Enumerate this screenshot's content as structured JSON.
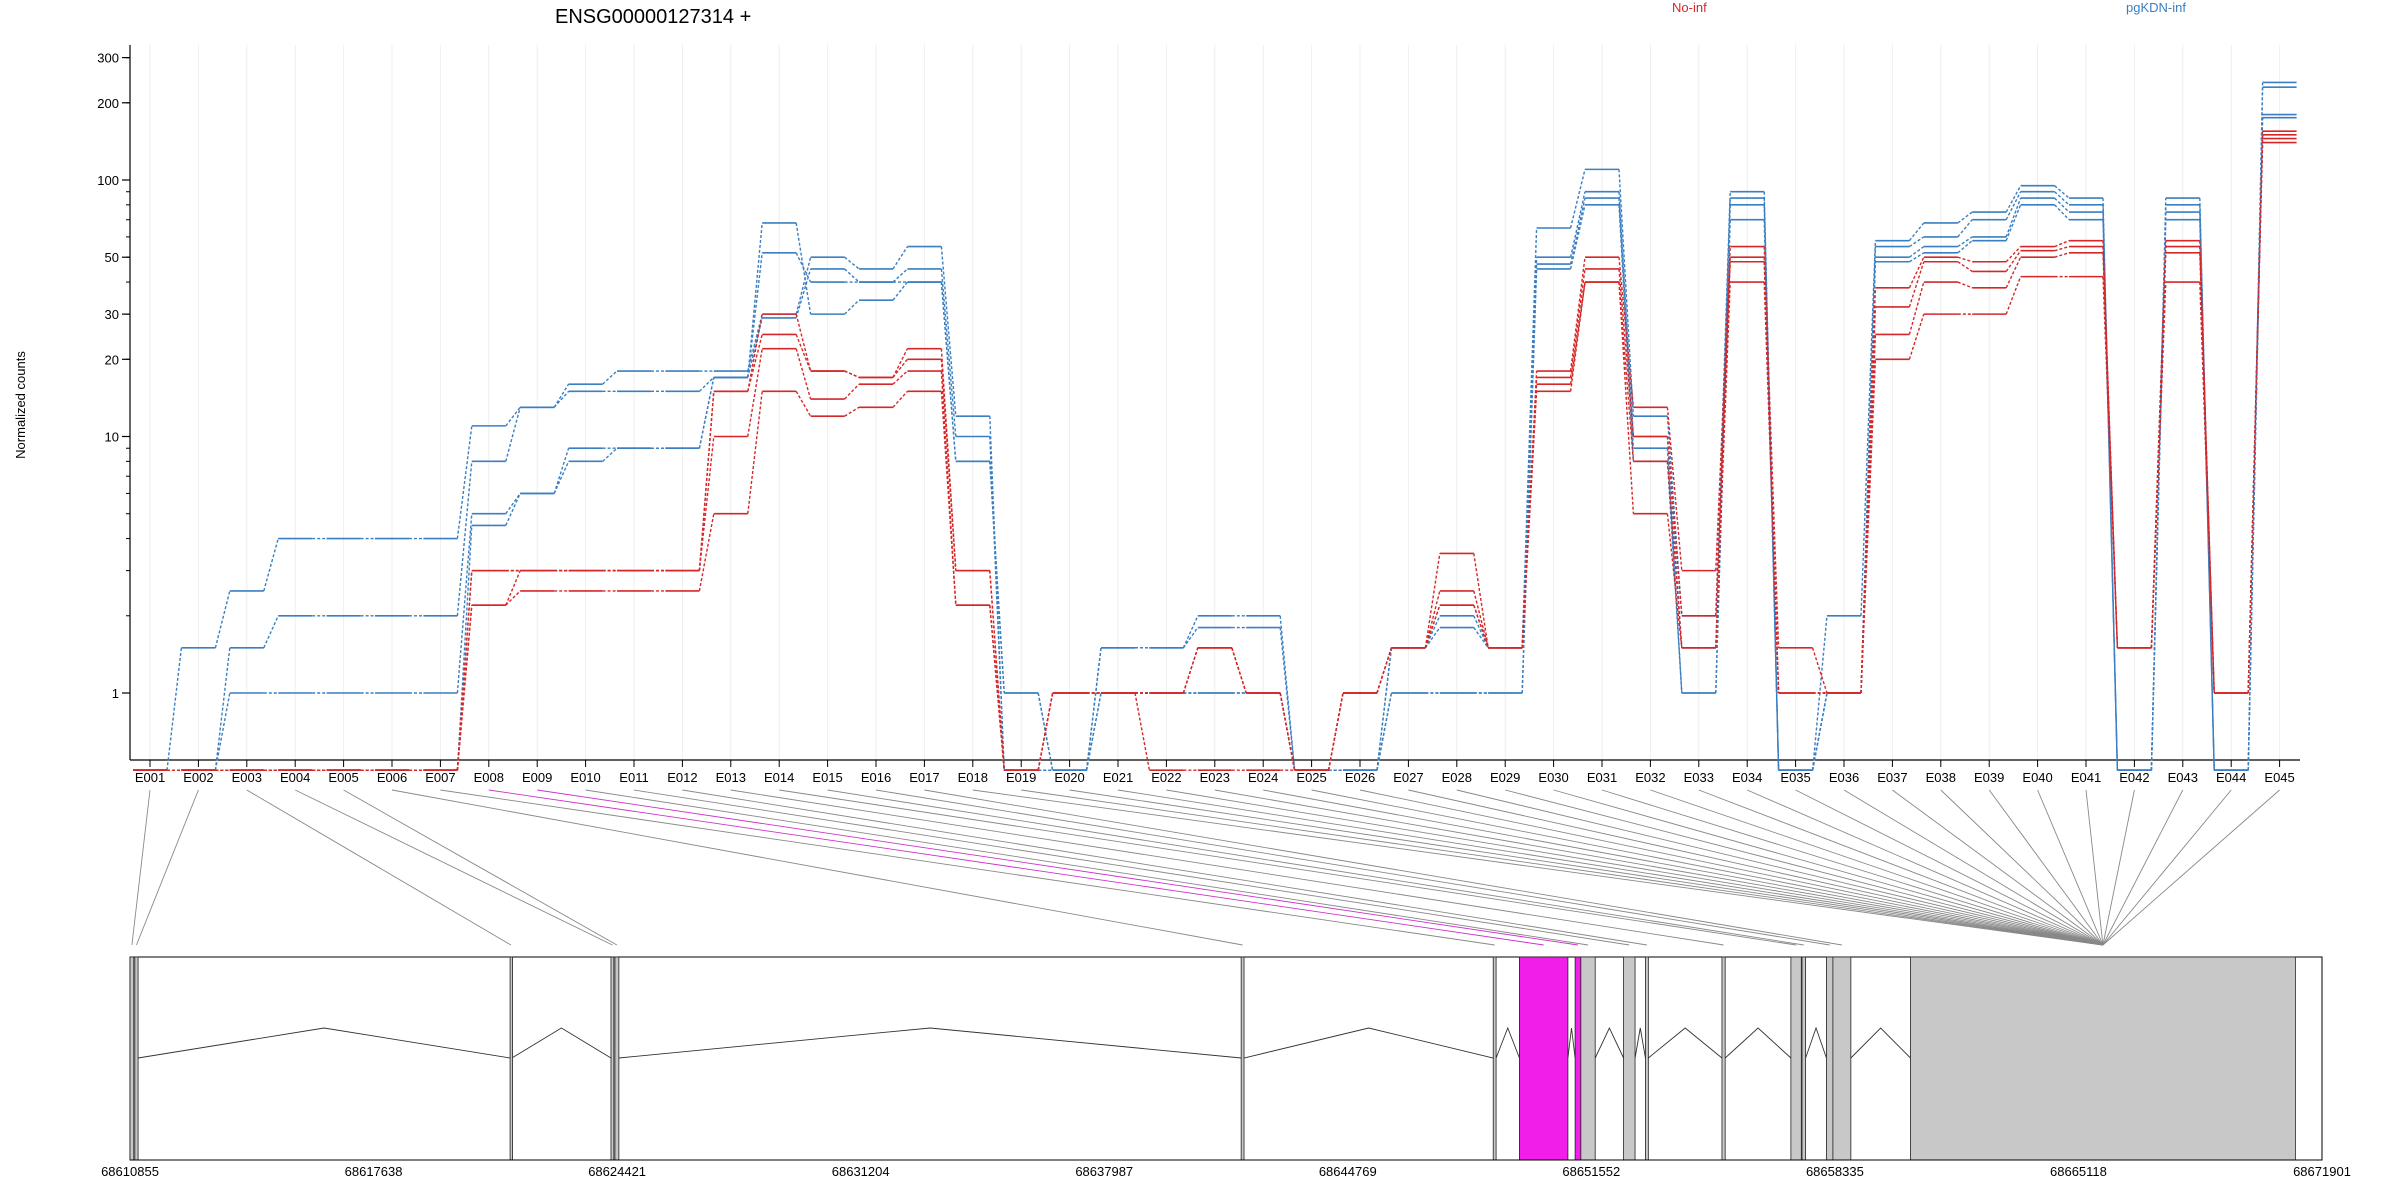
{
  "figure": {
    "title": "ENSG00000127314 +",
    "ylabel": "Normalized counts"
  },
  "chart_data": {
    "type": "line",
    "title": "ENSG00000127314 +",
    "ylabel": "Normalized counts",
    "yscale": "log",
    "yticks": [
      1,
      10,
      20,
      30,
      50,
      100,
      200,
      300
    ],
    "categories": [
      "E001",
      "E002",
      "E003",
      "E004",
      "E005",
      "E006",
      "E007",
      "E008",
      "E009",
      "E010",
      "E011",
      "E012",
      "E013",
      "E014",
      "E015",
      "E016",
      "E017",
      "E018",
      "E019",
      "E020",
      "E021",
      "E022",
      "E023",
      "E024",
      "E025",
      "E026",
      "E027",
      "E028",
      "E029",
      "E030",
      "E031",
      "E032",
      "E033",
      "E034",
      "E035",
      "E036",
      "E037",
      "E038",
      "E039",
      "E040",
      "E041",
      "E042",
      "E043",
      "E044",
      "E045"
    ],
    "legend": [
      {
        "name": "No-inf",
        "color": "#d62728"
      },
      {
        "name": "pgKDN-inf",
        "color": "#3a7fc1"
      }
    ],
    "series": [
      {
        "group": "pgKDN-inf",
        "values": [
          0.5,
          1.5,
          2.5,
          4,
          4,
          4,
          4,
          11,
          13,
          16,
          18,
          18,
          18,
          30,
          50,
          45,
          55,
          12,
          0.5,
          0.5,
          1.5,
          1.5,
          2,
          2,
          0.5,
          0.5,
          1.5,
          2,
          1.5,
          65,
          110,
          12,
          2,
          90,
          0.5,
          2,
          58,
          68,
          75,
          95,
          85,
          0.5,
          85,
          0.5,
          240
        ]
      },
      {
        "group": "pgKDN-inf",
        "values": [
          0.5,
          0.5,
          1.5,
          2,
          2,
          2,
          2,
          8,
          13,
          15,
          15,
          15,
          17,
          29,
          45,
          40,
          45,
          10,
          0.5,
          0.5,
          1.5,
          1.5,
          1.8,
          1.8,
          0.5,
          0.5,
          1.5,
          1.8,
          1.5,
          50,
          90,
          10,
          1.5,
          85,
          0.5,
          1,
          55,
          60,
          70,
          90,
          80,
          0.5,
          80,
          0.5,
          230
        ]
      },
      {
        "group": "pgKDN-inf",
        "values": [
          0.5,
          0.5,
          1,
          1,
          1,
          1,
          1,
          5,
          6,
          9,
          9,
          9,
          17,
          68,
          30,
          34,
          40,
          8,
          1,
          0.5,
          1,
          1,
          1,
          1,
          0.5,
          0.5,
          1,
          1,
          1,
          47,
          85,
          9,
          1,
          80,
          0.5,
          1,
          50,
          55,
          60,
          85,
          75,
          0.5,
          75,
          0.5,
          180
        ]
      },
      {
        "group": "pgKDN-inf",
        "values": [
          0.5,
          0.5,
          0.5,
          0.5,
          0.5,
          0.5,
          0.5,
          4.5,
          6,
          8,
          9,
          9,
          17,
          52,
          40,
          40,
          40,
          8,
          1,
          0.5,
          1,
          1,
          1,
          1,
          0.5,
          0.5,
          1,
          1,
          1,
          45,
          80,
          8,
          1,
          70,
          0.5,
          1,
          48,
          52,
          58,
          80,
          70,
          0.5,
          70,
          0.5,
          175
        ]
      },
      {
        "group": "No-inf",
        "values": [
          0.5,
          0.5,
          0.5,
          0.5,
          0.5,
          0.5,
          0.5,
          3,
          3,
          3,
          3,
          3,
          15,
          30,
          18,
          17,
          22,
          3,
          0.5,
          1,
          1,
          1,
          1.5,
          1,
          0.5,
          1,
          1.5,
          3.5,
          1.5,
          18,
          50,
          13,
          3,
          55,
          1.5,
          1,
          38,
          50,
          48,
          55,
          58,
          1.5,
          58,
          1,
          155
        ]
      },
      {
        "group": "No-inf",
        "values": [
          0.5,
          0.5,
          0.5,
          0.5,
          0.5,
          0.5,
          0.5,
          3,
          3,
          3,
          3,
          3,
          15,
          25,
          18,
          17,
          20,
          3,
          0.5,
          1,
          1,
          1,
          1.5,
          1,
          0.5,
          1,
          1.5,
          2.5,
          1.5,
          17,
          45,
          10,
          2,
          50,
          1,
          1,
          32,
          48,
          44,
          53,
          55,
          1.5,
          55,
          1,
          150
        ]
      },
      {
        "group": "No-inf",
        "values": [
          0.5,
          0.5,
          0.5,
          0.5,
          0.5,
          0.5,
          0.5,
          2.2,
          3,
          3,
          3,
          3,
          10,
          22,
          14,
          16,
          18,
          2.2,
          0.5,
          1,
          1,
          1,
          1.5,
          1,
          0.5,
          1,
          1.5,
          2.2,
          1.5,
          16,
          40,
          8,
          1.5,
          48,
          1,
          1,
          25,
          40,
          38,
          50,
          52,
          1.5,
          52,
          1,
          145
        ]
      },
      {
        "group": "No-inf",
        "values": [
          0.5,
          0.5,
          0.5,
          0.5,
          0.5,
          0.5,
          0.5,
          2.2,
          2.5,
          2.5,
          2.5,
          2.5,
          5,
          15,
          12,
          13,
          15,
          2.2,
          0.5,
          1,
          1,
          0.5,
          0.5,
          0.5,
          0.5,
          1,
          1.5,
          2.2,
          1.5,
          15,
          40,
          5,
          1.5,
          40,
          1,
          1,
          20,
          30,
          30,
          42,
          42,
          1.5,
          40,
          1,
          140
        ]
      }
    ],
    "genomic_axis": {
      "ticks": [
        "68610855",
        "68617638",
        "68624421",
        "68631204",
        "68637987",
        "68644769",
        "68651552",
        "68658335",
        "68665118",
        "68671901"
      ],
      "start": 68610855,
      "end": 68671901
    },
    "gene_model": {
      "exons": [
        {
          "id": "E001",
          "start": 68610855,
          "end": 68610960,
          "highlight": false
        },
        {
          "id": "E002",
          "start": 68610990,
          "end": 68611080,
          "highlight": false
        },
        {
          "id": "E003",
          "start": 68621440,
          "end": 68621490,
          "highlight": false
        },
        {
          "id": "E004",
          "start": 68624250,
          "end": 68624330,
          "highlight": false
        },
        {
          "id": "E005",
          "start": 68624360,
          "end": 68624470,
          "highlight": false
        },
        {
          "id": "E006",
          "start": 68641800,
          "end": 68641880,
          "highlight": false
        },
        {
          "id": "E007",
          "start": 68648820,
          "end": 68648900,
          "highlight": false
        },
        {
          "id": "E008",
          "start": 68649550,
          "end": 68650900,
          "highlight": true
        },
        {
          "id": "E009",
          "start": 68651100,
          "end": 68651260,
          "highlight": true
        },
        {
          "id": "E010",
          "start": 68651260,
          "end": 68651660,
          "highlight": false
        },
        {
          "id": "E011",
          "start": 68652450,
          "end": 68652770,
          "highlight": false
        },
        {
          "id": "E012",
          "start": 68653060,
          "end": 68653140,
          "highlight": false
        },
        {
          "id": "E013",
          "start": 68655190,
          "end": 68655280,
          "highlight": false
        },
        {
          "id": "E014",
          "start": 68657110,
          "end": 68657400,
          "highlight": false
        },
        {
          "id": "E015",
          "start": 68657420,
          "end": 68657520,
          "highlight": false
        },
        {
          "id": "E016",
          "start": 68658100,
          "end": 68658280,
          "highlight": false
        },
        {
          "id": "E017",
          "start": 68658280,
          "end": 68658780,
          "highlight": false
        },
        {
          "id": "E018",
          "start": 68660440,
          "end": 68671160,
          "highlight": false
        }
      ]
    }
  }
}
